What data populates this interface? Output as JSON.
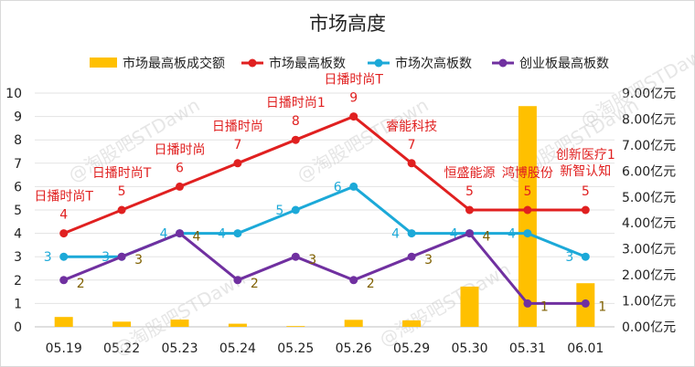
{
  "chart_data": {
    "type": "bar+line",
    "title": "市场高度",
    "categories": [
      "05.19",
      "05.22",
      "05.23",
      "05.24",
      "05.25",
      "05.26",
      "05.29",
      "05.30",
      "05.31",
      "06.01"
    ],
    "left_axis": {
      "ylim": [
        0,
        10
      ],
      "ticks": [
        "0",
        "1",
        "2",
        "3",
        "4",
        "5",
        "6",
        "7",
        "8",
        "9",
        "10"
      ]
    },
    "right_axis": {
      "ylim": [
        0,
        9
      ],
      "ticks": [
        "0.00亿元",
        "1.00亿元",
        "2.00亿元",
        "3.00亿元",
        "4.00亿元",
        "5.00亿元",
        "6.00亿元",
        "7.00亿元",
        "8.00亿元",
        "9.00亿元"
      ]
    },
    "series": [
      {
        "name": "市场最高板成交额",
        "kind": "bar",
        "axis": "right",
        "color": "#FFC000",
        "values": [
          0.38,
          0.2,
          0.28,
          0.12,
          0.03,
          0.27,
          0.25,
          1.55,
          8.5,
          1.68
        ]
      },
      {
        "name": "市场最高板数",
        "kind": "line",
        "axis": "left",
        "color": "#E02020",
        "values": [
          4,
          5,
          6,
          7,
          8,
          9,
          7,
          5,
          5,
          5
        ],
        "labels": [
          "4",
          "5",
          "6",
          "7",
          "8",
          "9",
          "7",
          "5",
          "5",
          "5"
        ],
        "stock_labels": [
          "日播时尚T",
          "日播时尚T",
          "日播时尚",
          "日播时尚",
          "日播时尚1",
          "日播时尚T",
          "睿能科技",
          "恒盛能源",
          "鸿博股份",
          "创新医疗1 新智认知"
        ]
      },
      {
        "name": "市场次高板数",
        "kind": "line",
        "axis": "left",
        "color": "#1CA9D8",
        "values": [
          3,
          3,
          4,
          4,
          5,
          6,
          4,
          4,
          4,
          3
        ],
        "labels": [
          "3",
          "3",
          "4",
          "4",
          "5",
          "6",
          "4",
          "4",
          "4",
          "3"
        ]
      },
      {
        "name": "创业板最高板数",
        "kind": "line",
        "axis": "left",
        "color": "#7030A0",
        "values": [
          2,
          3,
          4,
          2,
          3,
          2,
          3,
          4,
          1,
          1
        ],
        "labels": [
          "2",
          "3",
          "4",
          "2",
          "3",
          "2",
          "3",
          "4",
          "1",
          "1"
        ]
      }
    ],
    "legend_position": "top",
    "grid": true
  },
  "watermark": "@淘股吧STDawn",
  "colors": {
    "label_line2": "#1CA9D8",
    "label_line3": "#7F6000"
  }
}
